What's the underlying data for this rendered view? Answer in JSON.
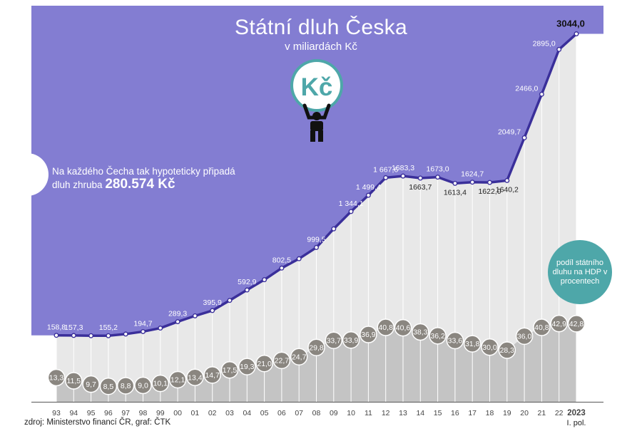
{
  "chart_data": {
    "type": "line+bubbles",
    "title": "Státní dluh Česka",
    "subtitle": "v miliardách Kč",
    "unit_label": "v miliardách Kč",
    "icon": "person-holding-koruna-coin-icon",
    "icon_text": "Kč",
    "callout_text": "Na každého Čecha tak hypoteticky připadá",
    "callout_text2": "dluh zhruba",
    "callout_value": "280.574 Kč",
    "legend_text": "podíl státního dluhu na HDP v procentech",
    "source": "zdroj: Ministerstvo financí ČR, graf: ČTK",
    "categories": [
      "93",
      "94",
      "95",
      "96",
      "97",
      "98",
      "99",
      "00",
      "01",
      "02",
      "03",
      "04",
      "05",
      "06",
      "07",
      "08",
      "09",
      "10",
      "11",
      "12",
      "13",
      "14",
      "15",
      "16",
      "17",
      "18",
      "19",
      "20",
      "21",
      "22",
      "2023"
    ],
    "last_category_sub": "I. pol.",
    "series": [
      {
        "name": "Státní dluh",
        "values": [
          158.8,
          157.3,
          155.2,
          155.2,
          171.0,
          194.7,
          228.0,
          289.3,
          345.0,
          395.9,
          493.0,
          592.9,
          691.0,
          802.5,
          892.0,
          999.5,
          1178.0,
          1344.1,
          1499.4,
          1667.6,
          1683.3,
          1663.7,
          1673.0,
          1613.4,
          1624.7,
          1622.0,
          1640.2,
          2049.7,
          2466.0,
          2895.0,
          3044.0
        ],
        "labels": [
          "158,8",
          "157,3",
          "",
          "155,2",
          "",
          "194,7",
          "",
          "289,3",
          "",
          "395,9",
          "",
          "592,9",
          "",
          "802,5",
          "",
          "999,5",
          "",
          "1 344,1",
          "1 499,4",
          "1 667,6",
          "1683,3",
          "1663,7",
          "1673,0",
          "1613,4",
          "1624,7",
          "1622,0",
          "1640,2",
          "2049,7",
          "2466,0",
          "2895,0",
          "3044,0"
        ],
        "label_pos": [
          "above",
          "above",
          "above",
          "above",
          "above",
          "above",
          "above",
          "above",
          "above",
          "above",
          "above",
          "above",
          "above",
          "above",
          "above",
          "above",
          "above",
          "above",
          "above",
          "above",
          "above",
          "below",
          "above",
          "below",
          "above",
          "below",
          "below",
          "left",
          "left",
          "left",
          "above"
        ]
      },
      {
        "name": "podíl státního dluhu na HDP v procentech",
        "values": [
          13.3,
          11.5,
          9.7,
          8.5,
          8.8,
          9.0,
          10.1,
          12.1,
          13.4,
          14.7,
          17.5,
          19.3,
          21.0,
          22.7,
          24.7,
          29.8,
          33.7,
          33.9,
          36.9,
          40.8,
          40.6,
          38.3,
          36.2,
          33.6,
          31.8,
          30.0,
          28.3,
          36.0,
          40.8,
          42.9,
          42.8
        ],
        "labels": [
          "13,3",
          "11,5",
          "9,7",
          "8,5",
          "8,8",
          "9,0",
          "10,1",
          "12,1",
          "13,4",
          "14,7",
          "17,5",
          "19,3",
          "21,0",
          "22,7",
          "24,7",
          "29,8",
          "33,7",
          "33,9",
          "36,9",
          "40,8",
          "40,6",
          "38,3",
          "36,2",
          "33,6",
          "31,8",
          "30,0",
          "28,3",
          "36,0",
          "40,8",
          "42,9",
          "42,8"
        ]
      }
    ],
    "colors": {
      "area": "#837dd2",
      "line": "#3a2f9a",
      "bubble": "#8a8680",
      "bubble_stroke": "#ffffff",
      "legend": "#4ea7a9",
      "gray_area": "#e8e8e8",
      "bubble_area": "#c4c4c4"
    }
  }
}
